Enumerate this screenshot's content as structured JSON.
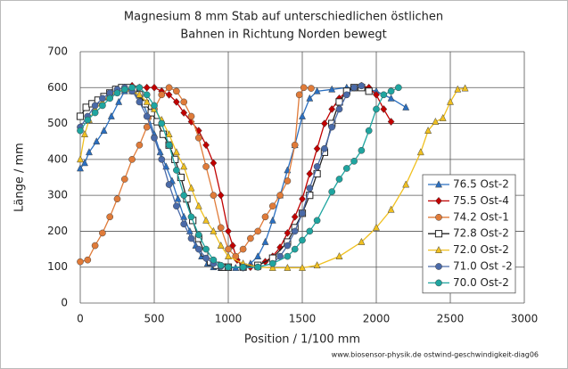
{
  "chart_data": {
    "type": "line",
    "title": [
      "Magnesium 8 mm Stab auf unterschiedlichen östlichen",
      "Bahnen in Richtung Norden bewegt"
    ],
    "x_label": "Position / 1/100 mm",
    "y_label": "Länge / mm",
    "source": "www.biosensor-physik.de  ostwind-geschwindigkeit-diag06",
    "xlim": [
      0,
      3000
    ],
    "ylim": [
      0,
      700
    ],
    "xticks": [
      0,
      500,
      1000,
      1500,
      2000,
      2500,
      3000
    ],
    "yticks": [
      0,
      100,
      200,
      300,
      400,
      500,
      600,
      700
    ],
    "grid": true,
    "legend": "right",
    "series": [
      {
        "name": "76.5 Ost-2",
        "color": "#2a6fc0",
        "marker": "triangle",
        "x": [
          0,
          30,
          60,
          110,
          160,
          210,
          260,
          300,
          340,
          380,
          420,
          460,
          500,
          540,
          580,
          620,
          660,
          700,
          740,
          780,
          820,
          860,
          900,
          950,
          1000,
          1050,
          1100,
          1150,
          1200,
          1250,
          1300,
          1350,
          1400,
          1450,
          1500,
          1550,
          1600,
          1700,
          1800,
          1900,
          2000,
          2100,
          2200
        ],
        "values": [
          375,
          390,
          420,
          450,
          480,
          520,
          560,
          590,
          600,
          590,
          560,
          520,
          470,
          420,
          380,
          340,
          290,
          240,
          200,
          160,
          130,
          110,
          100,
          98,
          98,
          98,
          100,
          110,
          130,
          170,
          230,
          300,
          370,
          440,
          520,
          570,
          590,
          595,
          600,
          600,
          590,
          570,
          545
        ]
      },
      {
        "name": "75.5 Ost-4",
        "color": "#c00000",
        "marker": "diamond",
        "x": [
          300,
          350,
          400,
          450,
          500,
          550,
          600,
          650,
          700,
          750,
          800,
          850,
          900,
          950,
          1000,
          1030,
          1060,
          1100,
          1150,
          1200,
          1250,
          1300,
          1350,
          1400,
          1450,
          1500,
          1550,
          1600,
          1650,
          1700,
          1750,
          1800,
          1850,
          1900,
          1950,
          2000,
          2050,
          2100
        ],
        "values": [
          600,
          605,
          600,
          600,
          600,
          590,
          580,
          560,
          530,
          505,
          480,
          440,
          390,
          300,
          200,
          160,
          120,
          100,
          100,
          105,
          115,
          130,
          155,
          195,
          240,
          290,
          360,
          430,
          500,
          540,
          570,
          590,
          600,
          605,
          600,
          580,
          540,
          505
        ]
      },
      {
        "name": "74.2 Ost-1",
        "color": "#e07b39",
        "marker": "circle",
        "x": [
          0,
          50,
          100,
          150,
          200,
          250,
          300,
          350,
          400,
          450,
          500,
          550,
          600,
          650,
          700,
          750,
          800,
          850,
          900,
          950,
          1000,
          1050,
          1100,
          1150,
          1200,
          1250,
          1300,
          1350,
          1400,
          1450,
          1480,
          1510,
          1560
        ],
        "values": [
          115,
          120,
          160,
          195,
          240,
          290,
          345,
          400,
          440,
          490,
          540,
          580,
          600,
          590,
          560,
          520,
          460,
          380,
          300,
          210,
          150,
          130,
          150,
          180,
          200,
          240,
          270,
          300,
          340,
          440,
          580,
          600,
          598
        ]
      },
      {
        "name": "72.8 Ost-2",
        "color": "#222222",
        "marker": "square",
        "x": [
          0,
          40,
          80,
          120,
          160,
          200,
          240,
          280,
          320,
          360,
          400,
          440,
          480,
          520,
          560,
          600,
          640,
          680,
          720,
          760,
          800,
          840,
          880,
          920,
          960,
          1000,
          1100,
          1200,
          1300,
          1400,
          1450,
          1500,
          1550,
          1600,
          1650,
          1700,
          1750,
          1800,
          1850,
          1900,
          1950
        ],
        "values": [
          520,
          545,
          555,
          565,
          575,
          585,
          595,
          600,
          600,
          595,
          580,
          555,
          530,
          505,
          470,
          440,
          400,
          350,
          290,
          230,
          180,
          140,
          115,
          105,
          100,
          100,
          100,
          105,
          125,
          170,
          210,
          250,
          300,
          360,
          420,
          500,
          560,
          590,
          600,
          600,
          590
        ]
      },
      {
        "name": "72.0 Ost-2",
        "color": "#f0c020",
        "marker": "triangle",
        "x": [
          0,
          30,
          60,
          100,
          150,
          200,
          250,
          300,
          350,
          400,
          450,
          500,
          550,
          600,
          650,
          700,
          750,
          800,
          850,
          900,
          950,
          1000,
          1100,
          1200,
          1300,
          1400,
          1500,
          1600,
          1750,
          1900,
          2000,
          2100,
          2200,
          2300,
          2350,
          2400,
          2450,
          2500,
          2550,
          2600
        ],
        "values": [
          400,
          470,
          510,
          540,
          560,
          580,
          590,
          595,
          590,
          580,
          560,
          540,
          510,
          470,
          420,
          380,
          320,
          270,
          230,
          200,
          160,
          130,
          110,
          100,
          98,
          98,
          98,
          105,
          130,
          170,
          210,
          260,
          330,
          420,
          480,
          505,
          515,
          560,
          595,
          598
        ]
      },
      {
        "name": "71.0 Ost -2",
        "color": "#4a6aa8",
        "marker": "circle",
        "x": [
          0,
          50,
          100,
          150,
          200,
          250,
          300,
          350,
          400,
          450,
          500,
          550,
          600,
          650,
          700,
          750,
          800,
          850,
          900,
          950,
          1000,
          1100,
          1200,
          1300,
          1350,
          1400,
          1450,
          1500,
          1550,
          1600,
          1650,
          1700,
          1750,
          1800,
          1850,
          1900
        ],
        "values": [
          490,
          520,
          550,
          570,
          585,
          595,
          600,
          590,
          560,
          520,
          460,
          400,
          330,
          270,
          220,
          180,
          150,
          125,
          110,
          102,
          100,
          98,
          100,
          110,
          130,
          160,
          200,
          250,
          320,
          380,
          430,
          490,
          540,
          580,
          600,
          605
        ]
      },
      {
        "name": "70.0 Ost-2",
        "color": "#1fa5a0",
        "marker": "circle",
        "x": [
          0,
          50,
          100,
          150,
          200,
          250,
          300,
          350,
          400,
          450,
          500,
          550,
          600,
          650,
          700,
          750,
          800,
          850,
          900,
          950,
          1000,
          1100,
          1200,
          1300,
          1400,
          1450,
          1500,
          1550,
          1600,
          1700,
          1750,
          1800,
          1850,
          1900,
          1950,
          2000,
          2050,
          2100,
          2150
        ],
        "values": [
          480,
          510,
          530,
          550,
          570,
          585,
          595,
          600,
          600,
          580,
          550,
          500,
          440,
          370,
          300,
          240,
          190,
          150,
          120,
          105,
          100,
          100,
          100,
          110,
          130,
          150,
          175,
          200,
          230,
          310,
          345,
          375,
          395,
          425,
          480,
          540,
          580,
          590,
          600
        ]
      }
    ]
  }
}
